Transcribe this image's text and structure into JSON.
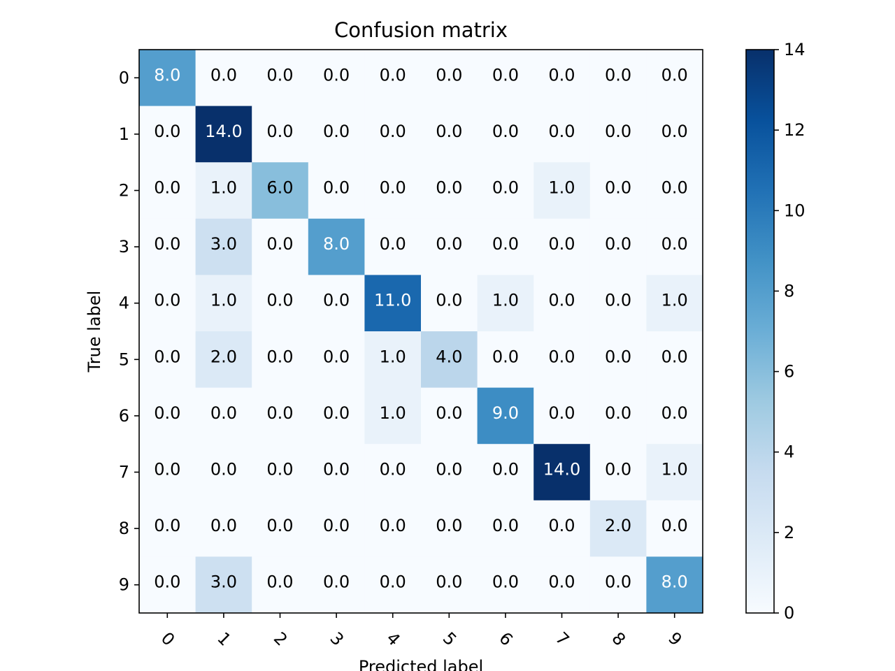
{
  "chart_data": {
    "type": "heatmap",
    "title": "Confusion matrix",
    "xlabel": "Predicted label",
    "ylabel": "True label",
    "x_categories": [
      "0",
      "1",
      "2",
      "3",
      "4",
      "5",
      "6",
      "7",
      "8",
      "9"
    ],
    "y_categories": [
      "0",
      "1",
      "2",
      "3",
      "4",
      "5",
      "6",
      "7",
      "8",
      "9"
    ],
    "values": [
      [
        8,
        0,
        0,
        0,
        0,
        0,
        0,
        0,
        0,
        0
      ],
      [
        0,
        14,
        0,
        0,
        0,
        0,
        0,
        0,
        0,
        0
      ],
      [
        0,
        1,
        6,
        0,
        0,
        0,
        0,
        1,
        0,
        0
      ],
      [
        0,
        3,
        0,
        8,
        0,
        0,
        0,
        0,
        0,
        0
      ],
      [
        0,
        1,
        0,
        0,
        11,
        0,
        1,
        0,
        0,
        1
      ],
      [
        0,
        2,
        0,
        0,
        1,
        4,
        0,
        0,
        0,
        0
      ],
      [
        0,
        0,
        0,
        0,
        1,
        0,
        9,
        0,
        0,
        0
      ],
      [
        0,
        0,
        0,
        0,
        0,
        0,
        0,
        14,
        0,
        1
      ],
      [
        0,
        0,
        0,
        0,
        0,
        0,
        0,
        0,
        2,
        0
      ],
      [
        0,
        3,
        0,
        0,
        0,
        0,
        0,
        0,
        0,
        8
      ]
    ],
    "value_format": "0.0",
    "colormap": "Blues",
    "colorbar": {
      "min": 0,
      "max": 14,
      "ticks": [
        0,
        2,
        4,
        6,
        8,
        10,
        12,
        14
      ]
    },
    "grid": false
  }
}
